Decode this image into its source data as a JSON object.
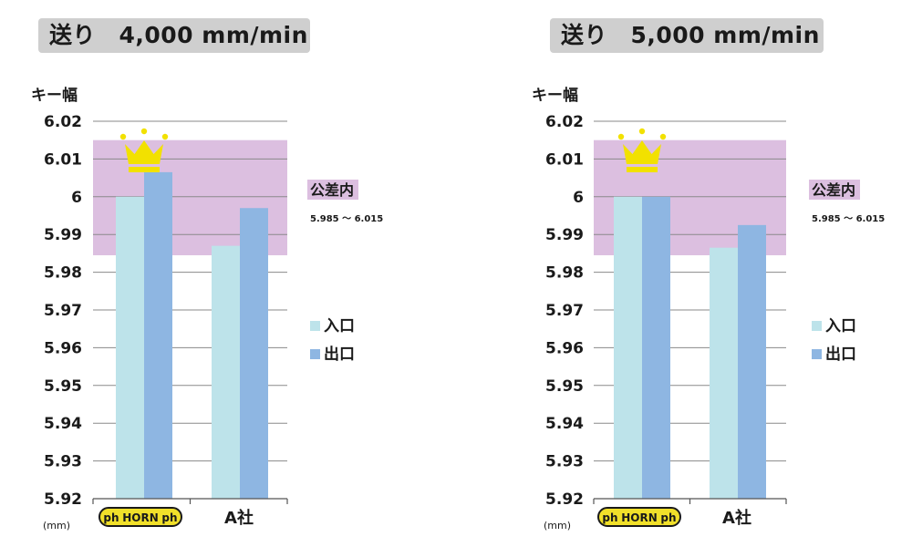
{
  "chart_data": [
    {
      "type": "bar",
      "title": "送り　4,000 mm/min",
      "ylabel": "キー幅",
      "unit": "(mm)",
      "ylim": [
        5.92,
        6.02
      ],
      "yticks": [
        "5.92",
        "5.93",
        "5.94",
        "5.95",
        "5.96",
        "5.97",
        "5.98",
        "5.99",
        "6",
        "6.01",
        "6.02"
      ],
      "categories": [
        "HORN",
        "A社"
      ],
      "series": [
        {
          "name": "入口",
          "color": "#bde3ea",
          "values": [
            6.0,
            5.987
          ]
        },
        {
          "name": "出口",
          "color": "#8eb6e2",
          "values": [
            6.0065,
            5.997
          ]
        }
      ],
      "tolerance_band": {
        "label": "公差内",
        "range_text": "5.985 ～ 6.015",
        "low": 5.9845,
        "high": 6.015,
        "color": "#dcbfe0"
      },
      "winner": {
        "category": "HORN",
        "icon": "crown-icon"
      },
      "grid": true,
      "legend_position": "right"
    },
    {
      "type": "bar",
      "title": "送り　5,000 mm/min",
      "ylabel": "キー幅",
      "unit": "(mm)",
      "ylim": [
        5.92,
        6.02
      ],
      "yticks": [
        "5.92",
        "5.93",
        "5.94",
        "5.95",
        "5.96",
        "5.97",
        "5.98",
        "5.99",
        "6",
        "6.01",
        "6.02"
      ],
      "categories": [
        "HORN",
        "A社"
      ],
      "series": [
        {
          "name": "入口",
          "color": "#bde3ea",
          "values": [
            6.0,
            5.9865
          ]
        },
        {
          "name": "出口",
          "color": "#8eb6e2",
          "values": [
            6.0,
            5.9925
          ]
        }
      ],
      "tolerance_band": {
        "label": "公差内",
        "range_text": "5.985 ～ 6.015",
        "low": 5.9845,
        "high": 6.015,
        "color": "#dcbfe0"
      },
      "winner": {
        "category": "HORN",
        "icon": "crown-icon"
      },
      "grid": true,
      "legend_position": "right"
    }
  ],
  "logo": {
    "text": "HORN",
    "mark": "ph",
    "color": "#f1e02a"
  }
}
